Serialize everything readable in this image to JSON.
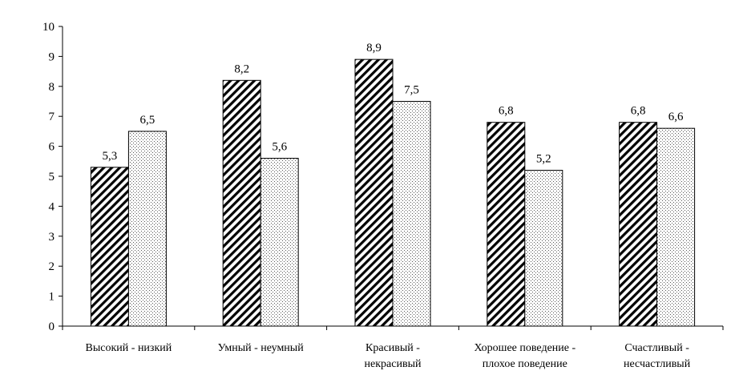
{
  "chart_data": {
    "type": "bar",
    "categories": [
      [
        "Высокий - низкий"
      ],
      [
        "Умный - неумный"
      ],
      [
        "Красивый -",
        "некрасивый"
      ],
      [
        "Хорошее поведение -",
        "плохое поведение"
      ],
      [
        "Счастливый -",
        "несчастливый"
      ]
    ],
    "series": [
      {
        "values": [
          5.3,
          8.2,
          8.9,
          6.8,
          6.8
        ],
        "labels": [
          "5,3",
          "8,2",
          "8,9",
          "6,8",
          "6,8"
        ],
        "pattern": "diagonal-hatch"
      },
      {
        "values": [
          6.5,
          5.6,
          7.5,
          5.2,
          6.6
        ],
        "labels": [
          "6,5",
          "5,6",
          "7,5",
          "5,2",
          "6,6"
        ],
        "pattern": "dots"
      }
    ],
    "ylim": [
      0,
      10
    ],
    "yticks": [
      "0",
      "1",
      "2",
      "3",
      "4",
      "5",
      "6",
      "7",
      "8",
      "9",
      "10"
    ],
    "grid": false,
    "legend": "none",
    "title": "",
    "xlabel": "",
    "ylabel": ""
  }
}
